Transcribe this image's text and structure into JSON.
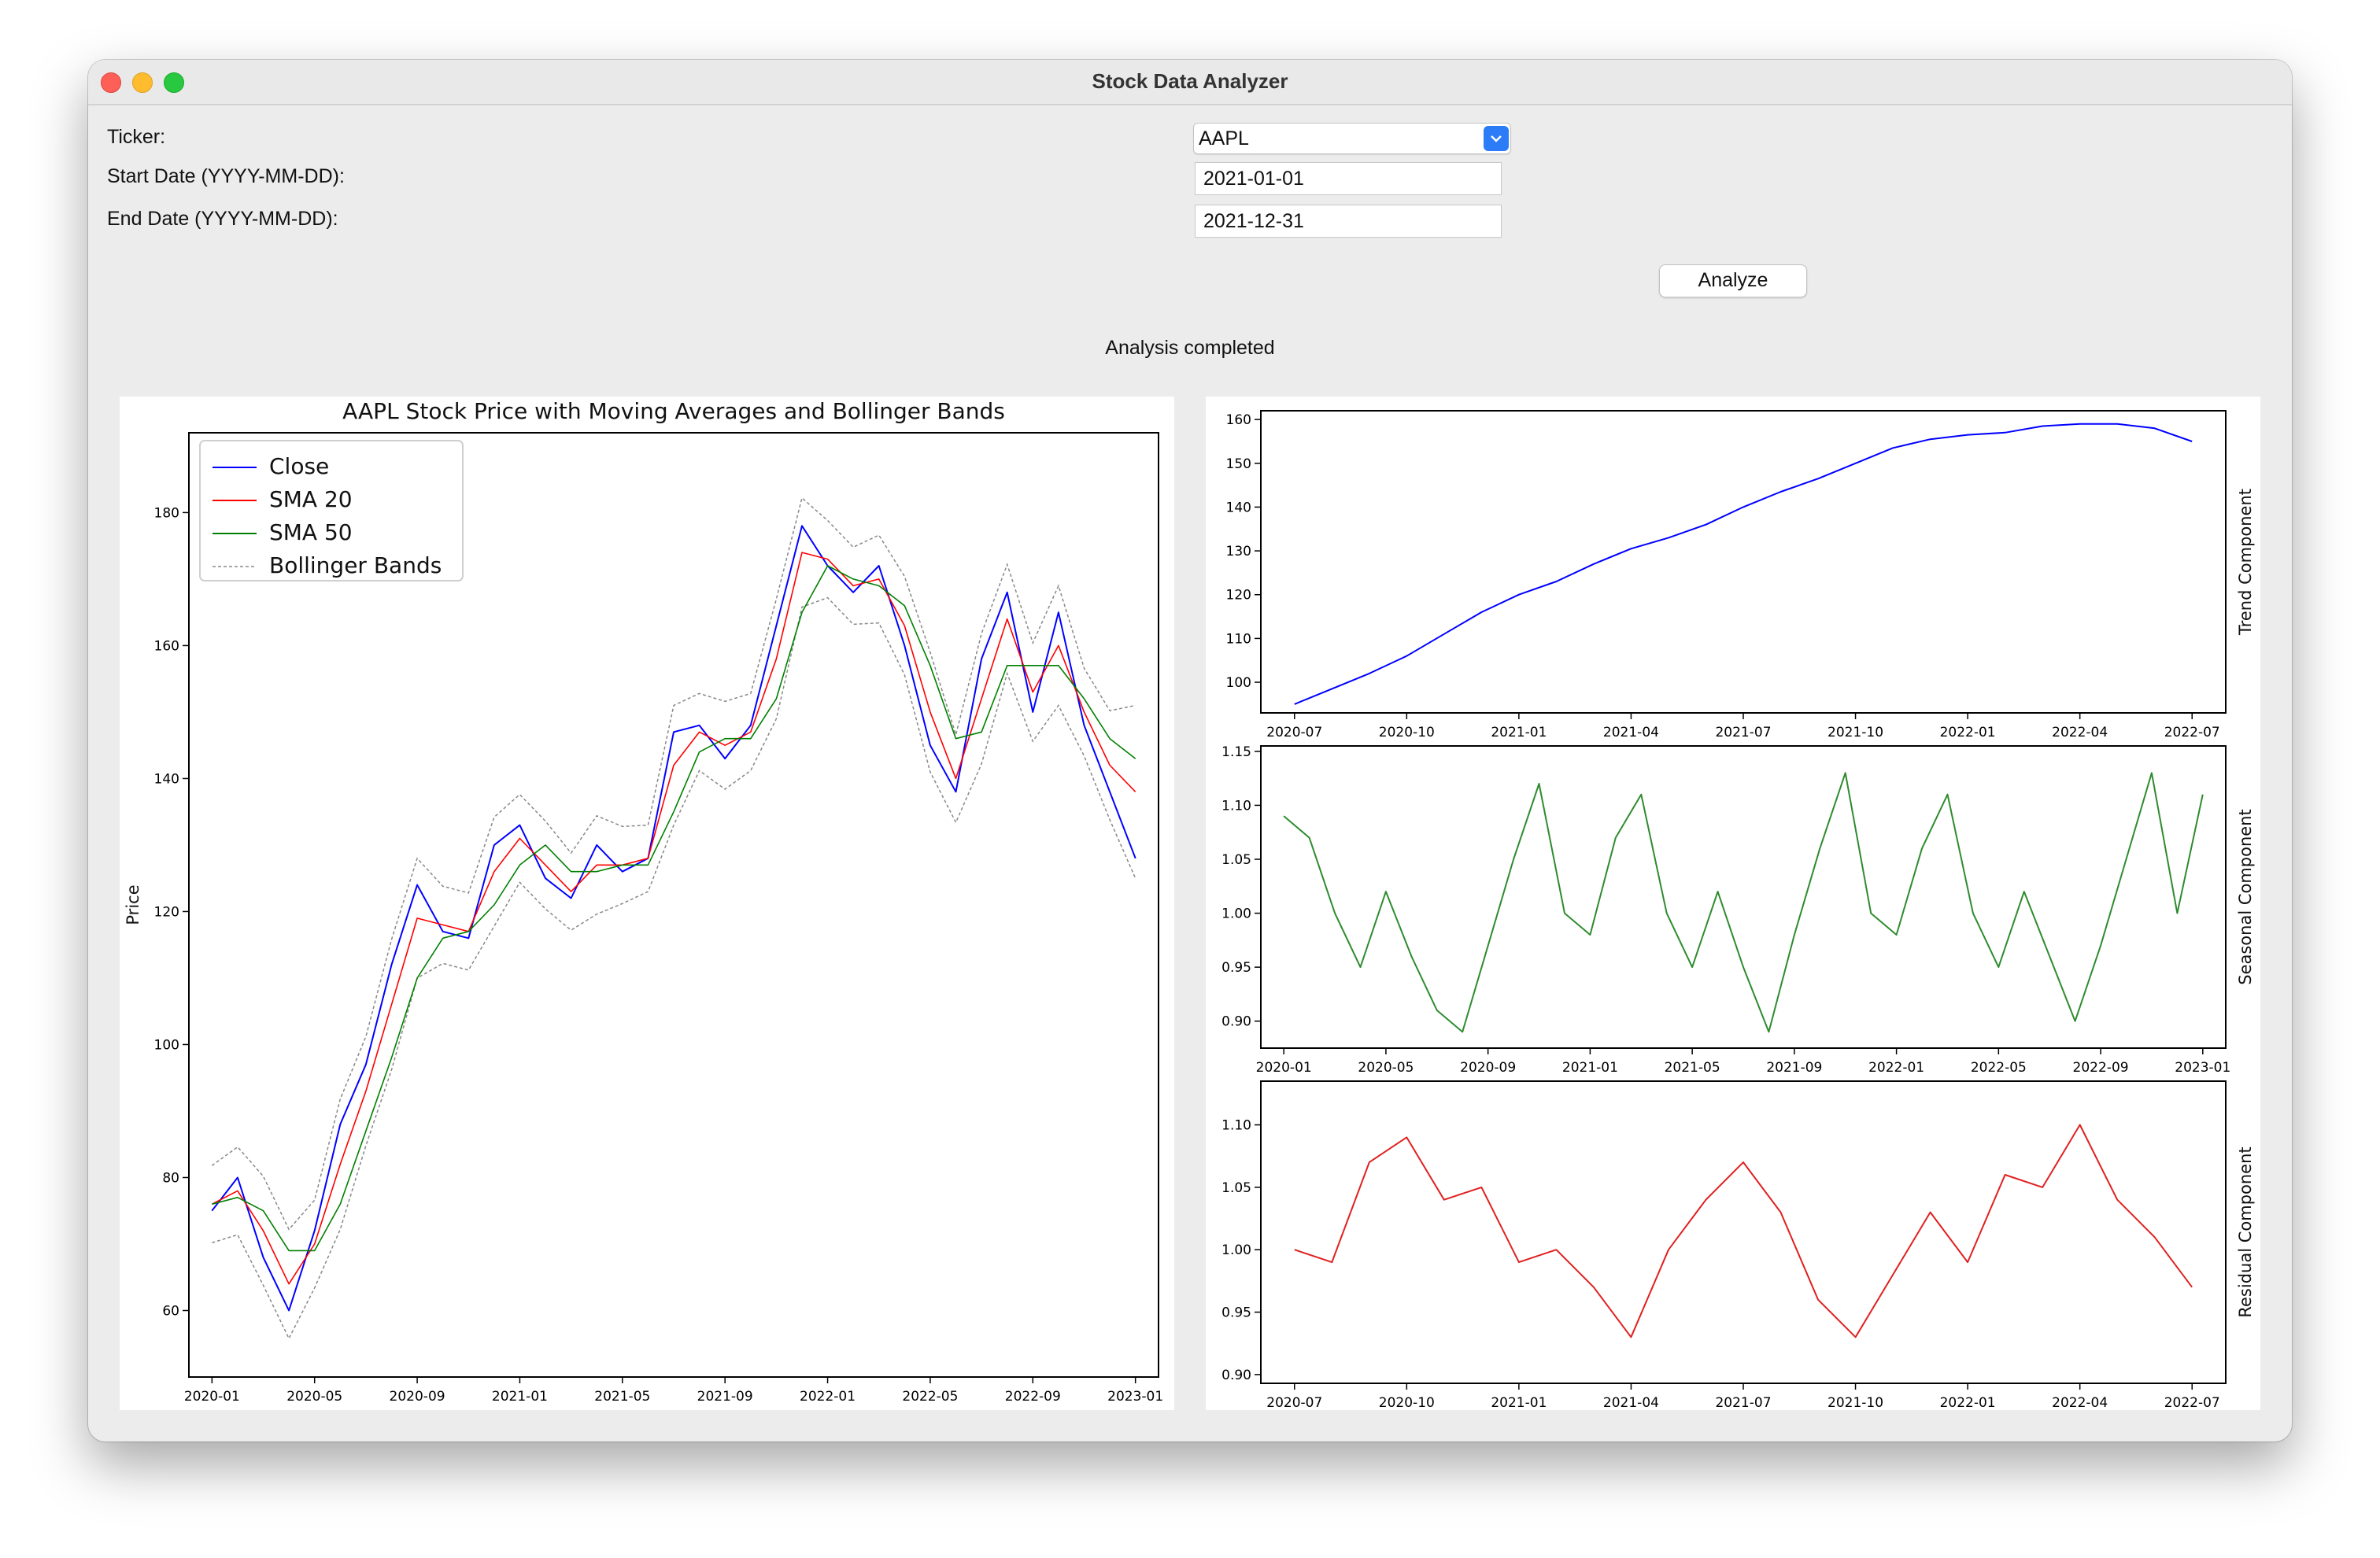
{
  "window": {
    "title": "Stock Data Analyzer"
  },
  "form": {
    "ticker_label": "Ticker:",
    "ticker_value": "AAPL",
    "start_label": "Start Date (YYYY-MM-DD):",
    "start_value": "2021-01-01",
    "end_label": "End Date (YYYY-MM-DD):",
    "end_value": "2021-12-31",
    "analyze_label": "Analyze"
  },
  "status": {
    "text": "Analysis completed"
  },
  "colors": {
    "close": "#0000ff",
    "sma20": "#ff0000",
    "sma50": "#008000",
    "bollinger": "#888888",
    "trend": "#0000ff",
    "seasonal": "#2e8b2e",
    "residual": "#e02020"
  },
  "chart_data": [
    {
      "type": "line",
      "title": "AAPL Stock Price with Moving Averages and Bollinger Bands",
      "xlabel": "",
      "ylabel": "Price",
      "x_ticks": [
        "2020-01",
        "2020-05",
        "2020-09",
        "2021-01",
        "2021-05",
        "2021-09",
        "2022-01",
        "2022-05",
        "2022-09",
        "2023-01"
      ],
      "y_ticks": [
        60,
        80,
        100,
        120,
        140,
        160,
        180
      ],
      "ylim": [
        50,
        192
      ],
      "legend": {
        "placement": "top-left",
        "entries": [
          "Close",
          "SMA 20",
          "SMA 50",
          "Bollinger Bands"
        ]
      },
      "x": [
        "2020-01",
        "2020-02",
        "2020-03",
        "2020-04",
        "2020-05",
        "2020-06",
        "2020-07",
        "2020-08",
        "2020-09",
        "2020-10",
        "2020-11",
        "2020-12",
        "2021-01",
        "2021-02",
        "2021-03",
        "2021-04",
        "2021-05",
        "2021-06",
        "2021-07",
        "2021-08",
        "2021-09",
        "2021-10",
        "2021-11",
        "2021-12",
        "2022-01",
        "2022-02",
        "2022-03",
        "2022-04",
        "2022-05",
        "2022-06",
        "2022-07",
        "2022-08",
        "2022-09",
        "2022-10",
        "2022-11",
        "2022-12",
        "2023-01"
      ],
      "series": [
        {
          "name": "Close",
          "values": [
            75,
            80,
            68,
            60,
            72,
            88,
            97,
            112,
            124,
            117,
            116,
            130,
            133,
            125,
            122,
            130,
            126,
            128,
            147,
            148,
            143,
            148,
            163,
            178,
            172,
            168,
            172,
            160,
            145,
            138,
            158,
            168,
            150,
            165,
            148,
            138,
            128
          ]
        },
        {
          "name": "SMA 20",
          "values": [
            76,
            78,
            72,
            64,
            70,
            82,
            93,
            106,
            119,
            118,
            117,
            126,
            131,
            127,
            123,
            127,
            127,
            128,
            142,
            147,
            145,
            147,
            158,
            174,
            173,
            169,
            170,
            163,
            150,
            140,
            152,
            164,
            153,
            160,
            150,
            142,
            138
          ]
        },
        {
          "name": "SMA 50",
          "values": [
            76,
            77,
            75,
            69,
            69,
            76,
            87,
            98,
            110,
            116,
            117,
            121,
            127,
            130,
            126,
            126,
            127,
            127,
            135,
            144,
            146,
            146,
            152,
            165,
            172,
            170,
            169,
            166,
            157,
            146,
            147,
            157,
            157,
            157,
            152,
            146,
            143
          ]
        }
      ]
    },
    {
      "type": "line",
      "ylabel": "Trend Component",
      "x_ticks": [
        "2020-07",
        "2020-10",
        "2021-01",
        "2021-04",
        "2021-07",
        "2021-10",
        "2022-01",
        "2022-04",
        "2022-07"
      ],
      "y_ticks": [
        100,
        110,
        120,
        130,
        140,
        150,
        160
      ],
      "ylim": [
        93,
        162
      ],
      "x": [
        "2020-07",
        "2020-08",
        "2020-09",
        "2020-10",
        "2020-11",
        "2020-12",
        "2021-01",
        "2021-02",
        "2021-03",
        "2021-04",
        "2021-05",
        "2021-06",
        "2021-07",
        "2021-08",
        "2021-09",
        "2021-10",
        "2021-11",
        "2021-12",
        "2022-01",
        "2022-02",
        "2022-03",
        "2022-04",
        "2022-05",
        "2022-06",
        "2022-07"
      ],
      "values": [
        95,
        98.5,
        102,
        106,
        111,
        116,
        120,
        123,
        127,
        130.5,
        133,
        136,
        140,
        143.5,
        146.5,
        150,
        153.5,
        155.5,
        156.5,
        157,
        158.5,
        159,
        159,
        158,
        155
      ]
    },
    {
      "type": "line",
      "ylabel": "Seasonal Component",
      "x_ticks": [
        "2020-01",
        "2020-05",
        "2020-09",
        "2021-01",
        "2021-05",
        "2021-09",
        "2022-01",
        "2022-05",
        "2022-09",
        "2023-01"
      ],
      "y_ticks": [
        0.9,
        0.95,
        1.0,
        1.05,
        1.1,
        1.15
      ],
      "ylim": [
        0.875,
        1.155
      ],
      "x": [
        "2020-01",
        "2020-02",
        "2020-03",
        "2020-04",
        "2020-05",
        "2020-06",
        "2020-07",
        "2020-08",
        "2020-09",
        "2020-10",
        "2020-11",
        "2020-12",
        "2021-01",
        "2021-02",
        "2021-03",
        "2021-04",
        "2021-05",
        "2021-06",
        "2021-07",
        "2021-08",
        "2021-09",
        "2021-10",
        "2021-11",
        "2021-12",
        "2022-01",
        "2022-02",
        "2022-03",
        "2022-04",
        "2022-05",
        "2022-06",
        "2022-07",
        "2022-08",
        "2022-09",
        "2022-10",
        "2022-11",
        "2022-12",
        "2023-01"
      ],
      "values": [
        1.09,
        1.07,
        1.0,
        0.95,
        1.02,
        0.96,
        0.91,
        0.89,
        0.97,
        1.05,
        1.12,
        1.0,
        0.98,
        1.07,
        1.11,
        1.0,
        0.95,
        1.02,
        0.95,
        0.89,
        0.98,
        1.06,
        1.13,
        1.0,
        0.98,
        1.06,
        1.11,
        1.0,
        0.95,
        1.02,
        0.96,
        0.9,
        0.97,
        1.05,
        1.13,
        1.0,
        1.11
      ]
    },
    {
      "type": "line",
      "ylabel": "Residual Component",
      "x_ticks": [
        "2020-07",
        "2020-10",
        "2021-01",
        "2021-04",
        "2021-07",
        "2021-10",
        "2022-01",
        "2022-04",
        "2022-07"
      ],
      "y_ticks": [
        0.9,
        0.95,
        1.0,
        1.05,
        1.1
      ],
      "ylim": [
        0.893,
        1.135
      ],
      "x": [
        "2020-07",
        "2020-08",
        "2020-09",
        "2020-10",
        "2020-11",
        "2020-12",
        "2021-01",
        "2021-02",
        "2021-03",
        "2021-04",
        "2021-05",
        "2021-06",
        "2021-07",
        "2021-08",
        "2021-09",
        "2021-10",
        "2021-11",
        "2021-12",
        "2022-01",
        "2022-02",
        "2022-03",
        "2022-04",
        "2022-05",
        "2022-06",
        "2022-07"
      ],
      "values": [
        1.0,
        0.99,
        1.07,
        1.09,
        1.04,
        1.05,
        0.99,
        1.0,
        0.97,
        0.93,
        1.0,
        1.04,
        1.07,
        1.03,
        0.96,
        0.93,
        0.98,
        1.03,
        0.99,
        1.06,
        1.05,
        1.1,
        1.04,
        1.01,
        0.97
      ]
    }
  ]
}
